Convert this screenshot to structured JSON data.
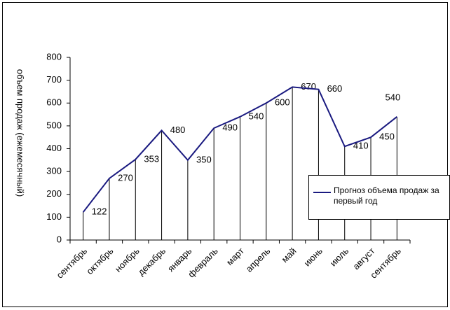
{
  "chart_data": {
    "type": "line",
    "y_label": "объем продаж (ежемесячный)",
    "categories": [
      "сентябрь",
      "октябрь",
      "ноябрь",
      "декабрь",
      "январь",
      "февраль",
      "март",
      "апрель",
      "май",
      "июнь",
      "июль",
      "август",
      "сентябрь"
    ],
    "series": [
      {
        "name": "Прогноз объема продаж за первый год",
        "color": "#1a1a80",
        "values": [
          122,
          270,
          353,
          480,
          350,
          490,
          540,
          600,
          670,
          660,
          410,
          450,
          540
        ]
      }
    ],
    "ylim": [
      0,
      800
    ],
    "yticks": [
      0,
      100,
      200,
      300,
      400,
      500,
      600,
      700,
      800
    ],
    "drop_lines": true
  }
}
